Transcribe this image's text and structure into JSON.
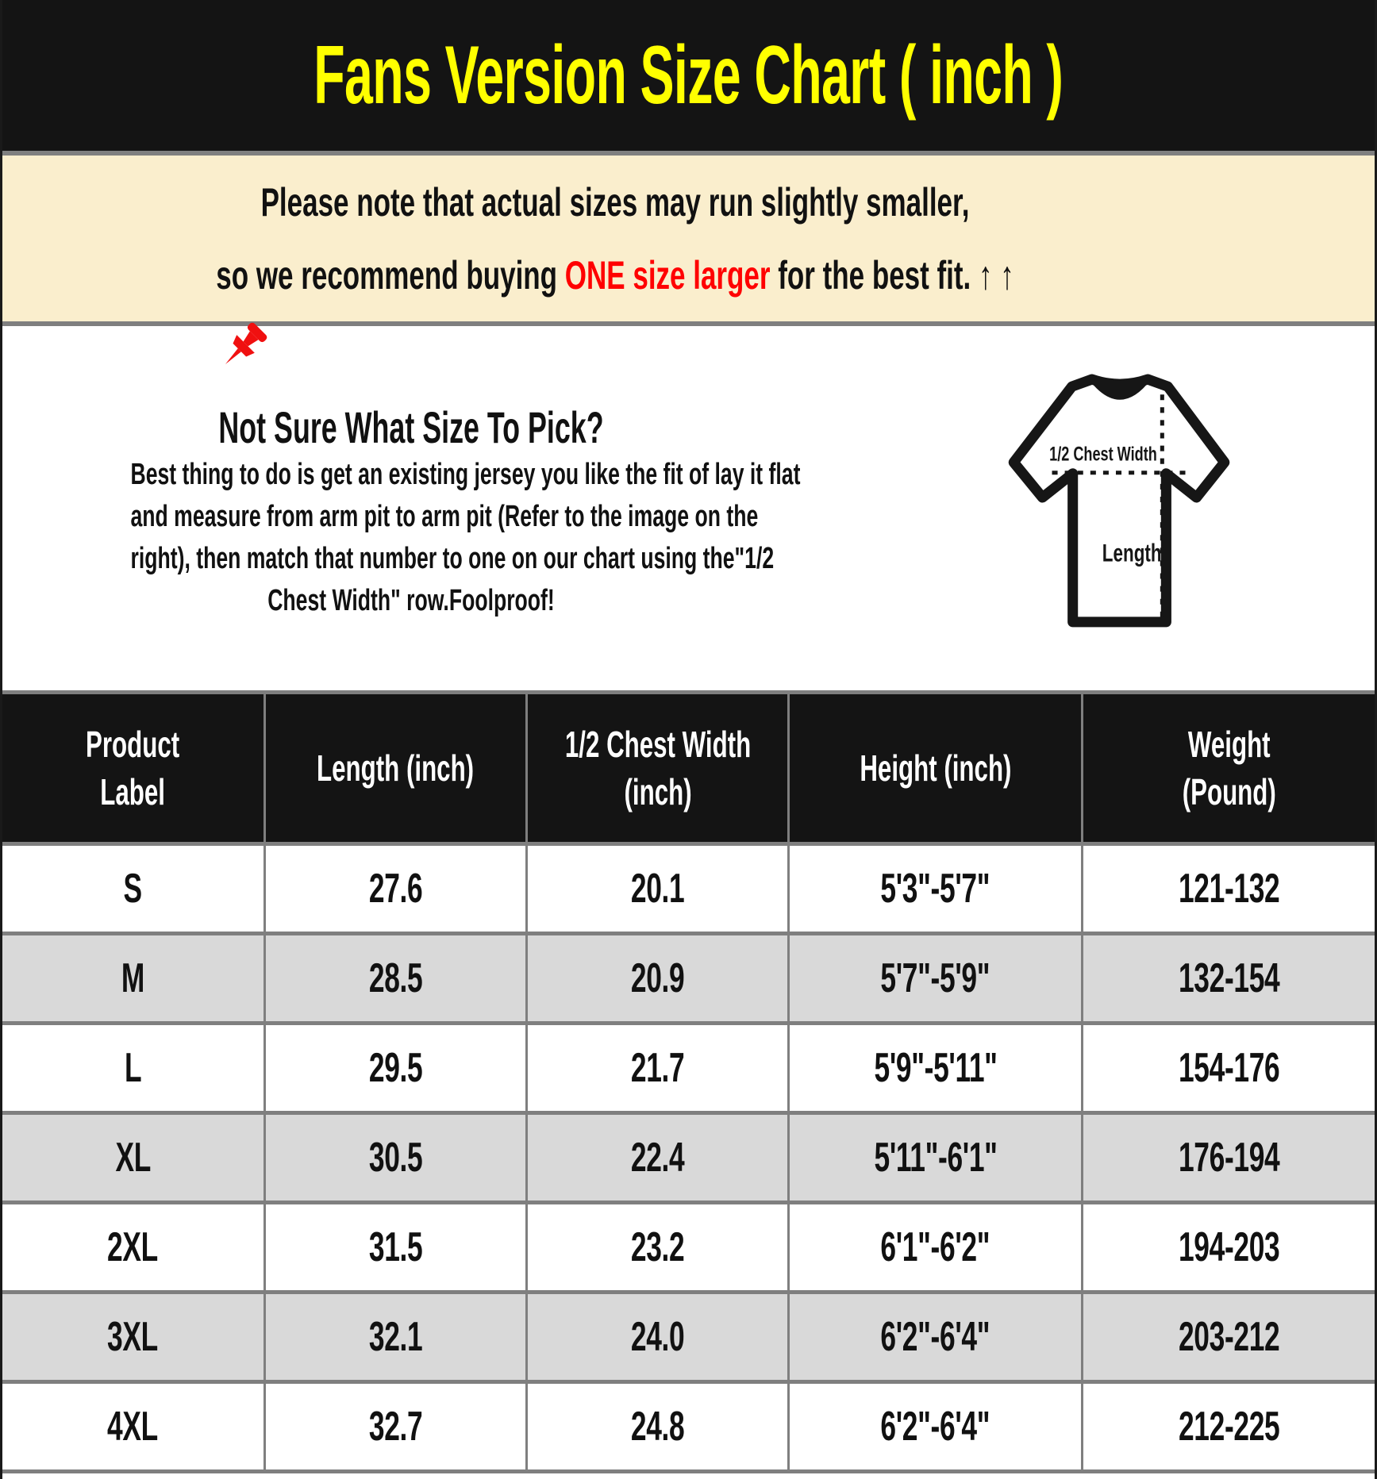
{
  "title": "Fans Version Size Chart ( inch )",
  "note": {
    "pin_icon": "pushpin-icon",
    "line1": "Please note that actual sizes may run slightly smaller,",
    "line2_prefix": "so we recommend buying ",
    "line2_highlight": "ONE size larger",
    "line2_suffix": " for the best fit. ",
    "arrows": "↑ ↑"
  },
  "guide": {
    "heading": "Not Sure What Size To Pick?",
    "body_lines": [
      "Best thing to do is get an existing jersey you like the fit of lay it flat",
      "and measure from arm pit to arm pit (Refer to the image on the",
      "right), then match that number to one on our chart using the\"1/2",
      "Chest Width\" row.Foolproof!"
    ]
  },
  "diagram": {
    "icon": "tshirt-diagram-icon",
    "chest_label": "1/2 Chest Width",
    "length_label": "Length"
  },
  "table": {
    "columns": [
      [
        "Product",
        "Label"
      ],
      [
        "Length (inch)"
      ],
      [
        "1/2 Chest Width",
        "(inch)"
      ],
      [
        "Height (inch)"
      ],
      [
        "Weight",
        "(Pound)"
      ]
    ],
    "rows": [
      [
        "S",
        "27.6",
        "20.1",
        "5'3\"-5'7\"",
        "121-132"
      ],
      [
        "M",
        "28.5",
        "20.9",
        "5'7\"-5'9\"",
        "132-154"
      ],
      [
        "L",
        "29.5",
        "21.7",
        "5'9\"-5'11\"",
        "154-176"
      ],
      [
        "XL",
        "30.5",
        "22.4",
        "5'11\"-6'1\"",
        "176-194"
      ],
      [
        "2XL",
        "31.5",
        "23.2",
        "6'1\"-6'2\"",
        "194-203"
      ],
      [
        "3XL",
        "32.1",
        "24.0",
        "6'2\"-6'4\"",
        "203-212"
      ],
      [
        "4XL",
        "32.7",
        "24.8",
        "6'2\"-6'4\"",
        "212-225"
      ]
    ]
  },
  "colors": {
    "title_yellow": "#ffff00",
    "highlight_red": "#ff0000",
    "header_bg": "#141414",
    "note_bg": "#faeecd",
    "alt_row_gray": "#d9d9d9",
    "divider_gray": "#7f7f7f"
  }
}
